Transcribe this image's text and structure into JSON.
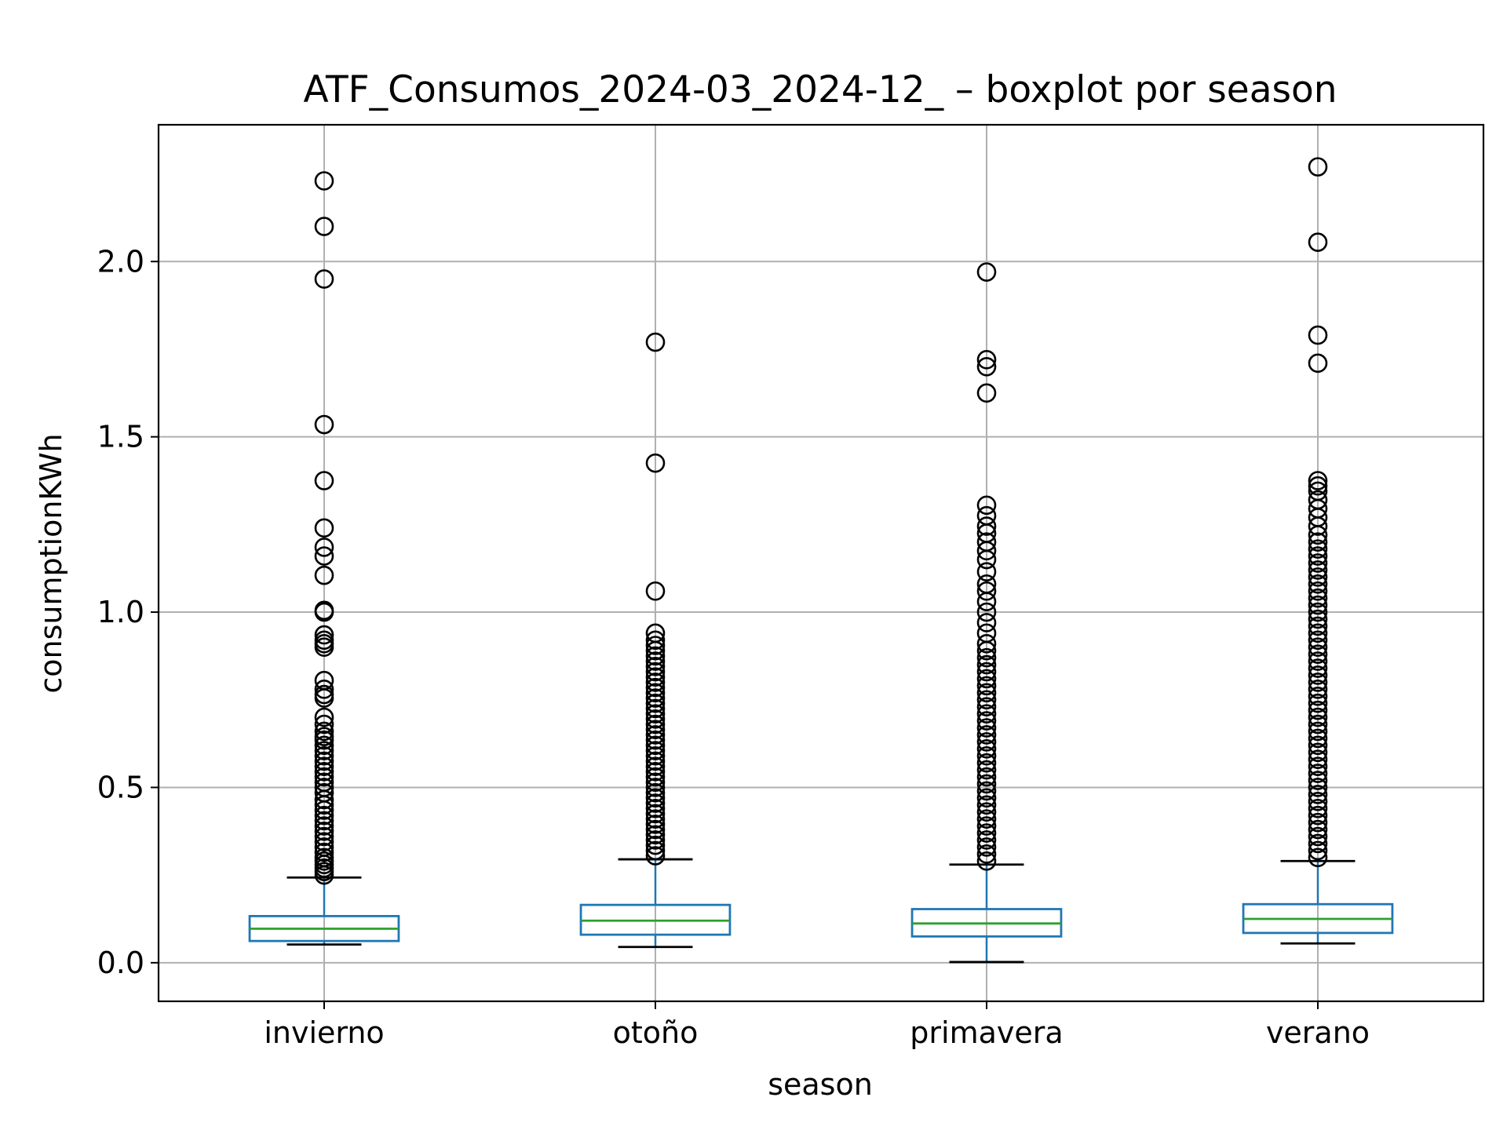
{
  "chart_data": {
    "type": "boxplot",
    "title": "ATF_Consumos_2024-03_2024-12_ – boxplot por season",
    "xlabel": "season",
    "ylabel": "consumptionKWh",
    "ylim": [
      -0.11,
      2.39
    ],
    "yticks": [
      0.0,
      0.5,
      1.0,
      1.5,
      2.0
    ],
    "ytick_labels": [
      "0.0",
      "0.5",
      "1.0",
      "1.5",
      "2.0"
    ],
    "grid": true,
    "colors": {
      "box": "#1f77b4",
      "median": "#2ca02c",
      "whisker_cap": "#000000",
      "grid": "#b0b0b0",
      "outlier": "#000000"
    },
    "categories": [
      "invierno",
      "otoño",
      "primavera",
      "verano"
    ],
    "boxes": [
      {
        "category": "invierno",
        "whislo": 0.052,
        "q1": 0.062,
        "med": 0.097,
        "q3": 0.133,
        "whishi": 0.243,
        "fliers": [
          2.23,
          2.1,
          1.95,
          1.535,
          1.375,
          1.24,
          1.185,
          1.16,
          1.105,
          1.005,
          1.0,
          0.935,
          0.92,
          0.91,
          0.9,
          0.805,
          0.78,
          0.765,
          0.755,
          0.7,
          0.68,
          0.66,
          0.645,
          0.635,
          0.62,
          0.605,
          0.59,
          0.575,
          0.56,
          0.545,
          0.53,
          0.515,
          0.5,
          0.485,
          0.465,
          0.45,
          0.435,
          0.42,
          0.405,
          0.39,
          0.375,
          0.36,
          0.345,
          0.33,
          0.315,
          0.3,
          0.29,
          0.28,
          0.27,
          0.26,
          0.25
        ]
      },
      {
        "category": "otoño",
        "whislo": 0.045,
        "q1": 0.08,
        "med": 0.12,
        "q3": 0.165,
        "whishi": 0.295,
        "fliers": [
          1.77,
          1.425,
          1.06,
          0.94,
          0.92,
          0.905,
          0.89,
          0.875,
          0.86,
          0.845,
          0.83,
          0.815,
          0.8,
          0.785,
          0.77,
          0.755,
          0.74,
          0.725,
          0.71,
          0.695,
          0.68,
          0.665,
          0.65,
          0.635,
          0.62,
          0.605,
          0.59,
          0.575,
          0.56,
          0.545,
          0.53,
          0.515,
          0.5,
          0.485,
          0.47,
          0.455,
          0.44,
          0.425,
          0.41,
          0.395,
          0.38,
          0.365,
          0.35,
          0.335,
          0.32,
          0.305
        ]
      },
      {
        "category": "primavera",
        "whislo": 0.002,
        "q1": 0.075,
        "med": 0.112,
        "q3": 0.153,
        "whishi": 0.28,
        "fliers": [
          1.97,
          1.72,
          1.7,
          1.625,
          1.305,
          1.275,
          1.245,
          1.225,
          1.2,
          1.175,
          1.15,
          1.115,
          1.08,
          1.06,
          1.03,
          1.0,
          0.97,
          0.94,
          0.91,
          0.89,
          0.87,
          0.85,
          0.83,
          0.81,
          0.79,
          0.77,
          0.75,
          0.73,
          0.71,
          0.69,
          0.67,
          0.65,
          0.63,
          0.61,
          0.59,
          0.57,
          0.55,
          0.53,
          0.51,
          0.49,
          0.47,
          0.45,
          0.43,
          0.41,
          0.39,
          0.37,
          0.35,
          0.33,
          0.31,
          0.29
        ]
      },
      {
        "category": "verano",
        "whislo": 0.055,
        "q1": 0.085,
        "med": 0.125,
        "q3": 0.167,
        "whishi": 0.29,
        "fliers": [
          2.27,
          2.055,
          1.79,
          1.71,
          1.375,
          1.36,
          1.345,
          1.32,
          1.295,
          1.27,
          1.245,
          1.22,
          1.2,
          1.18,
          1.16,
          1.14,
          1.12,
          1.1,
          1.08,
          1.06,
          1.04,
          1.02,
          1.0,
          0.98,
          0.96,
          0.94,
          0.92,
          0.9,
          0.88,
          0.86,
          0.84,
          0.82,
          0.8,
          0.78,
          0.76,
          0.74,
          0.72,
          0.7,
          0.68,
          0.66,
          0.64,
          0.62,
          0.6,
          0.58,
          0.56,
          0.54,
          0.52,
          0.5,
          0.48,
          0.46,
          0.44,
          0.42,
          0.4,
          0.38,
          0.36,
          0.34,
          0.32,
          0.3
        ]
      }
    ]
  }
}
